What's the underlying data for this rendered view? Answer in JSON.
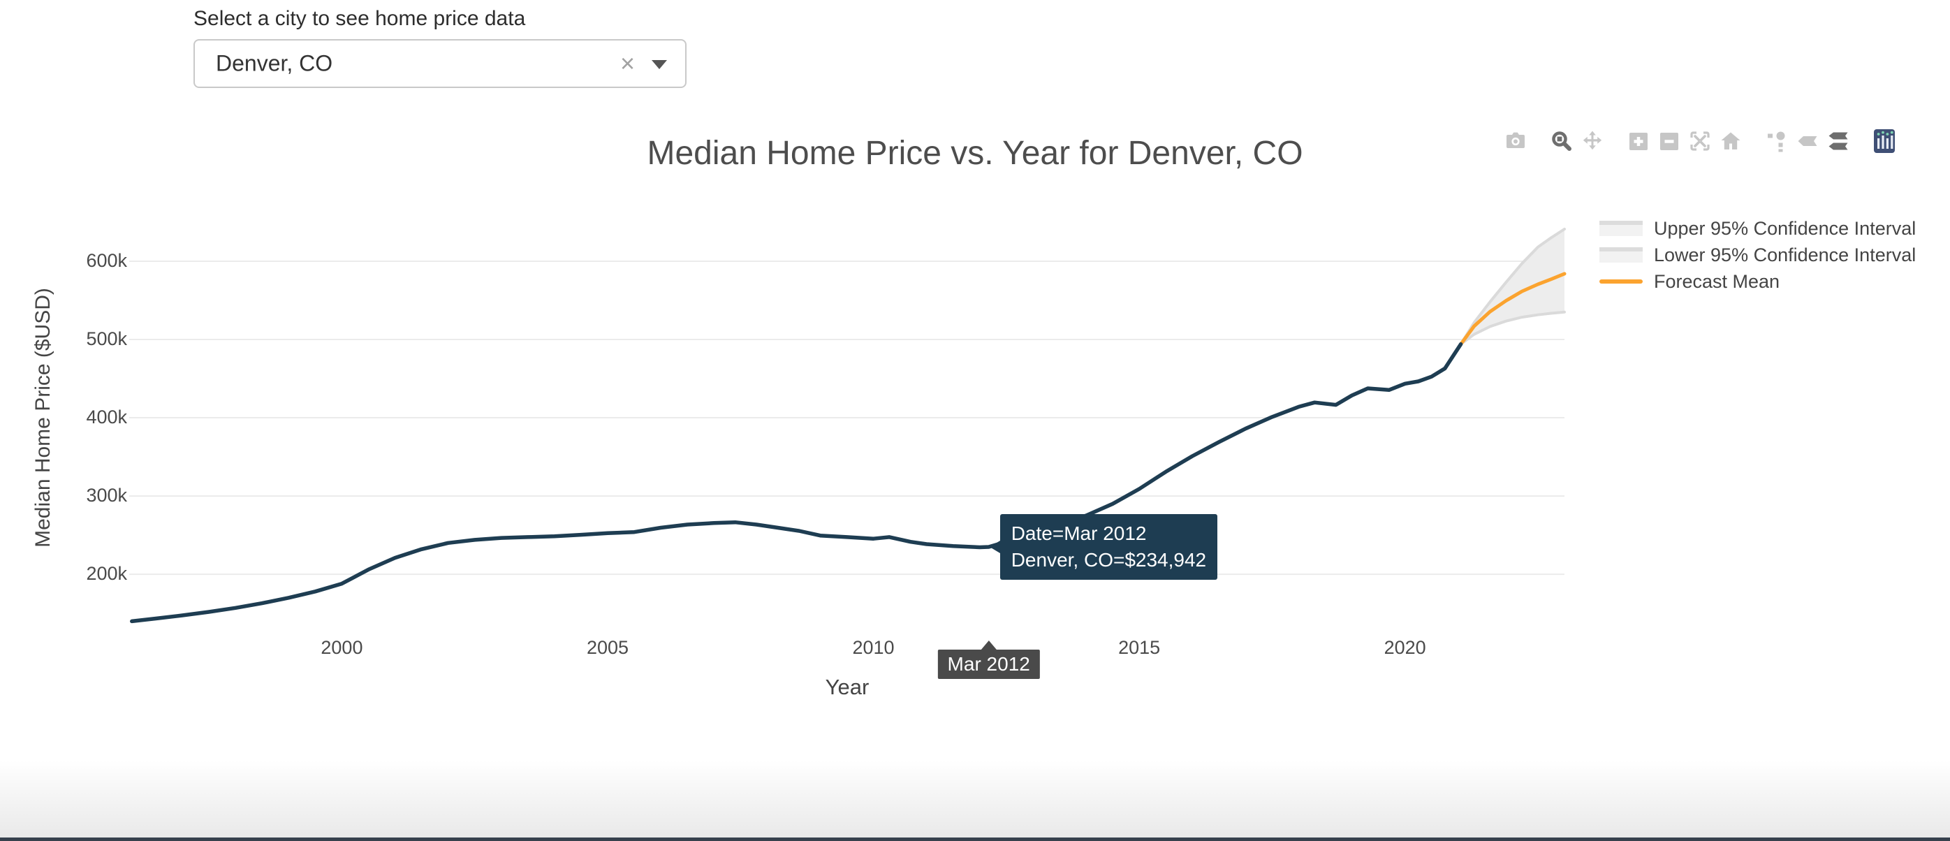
{
  "controls": {
    "label": "Select a city to see home price data",
    "value": "Denver, CO",
    "clear_icon": "×"
  },
  "modebar_groups": [
    [
      {
        "name": "camera",
        "active": false
      }
    ],
    [
      {
        "name": "zoom",
        "active": true
      },
      {
        "name": "pan",
        "active": false
      }
    ],
    [
      {
        "name": "zoom-in",
        "active": false
      },
      {
        "name": "zoom-out",
        "active": false
      },
      {
        "name": "autoscale",
        "active": false
      },
      {
        "name": "home",
        "active": false
      }
    ],
    [
      {
        "name": "spikelines",
        "active": false
      },
      {
        "name": "hover-closest",
        "active": false
      },
      {
        "name": "hover-compare",
        "active": true
      }
    ],
    [
      {
        "name": "plotly-logo",
        "active": false
      }
    ]
  ],
  "colors": {
    "historical": "#1e3d52",
    "forecast": "#fba32f",
    "ci_line": "#dadada",
    "ci_fill": "#ededed",
    "grid": "#ebebeb",
    "tooltip_bg": "#1e3d52",
    "spike_bg": "#4a4a4a",
    "logo_bg": "#3f4f75"
  },
  "chart_data": {
    "type": "line",
    "title": "Median Home Price vs. Year for Denver, CO",
    "xlabel": "Year",
    "ylabel": "Median Home Price ($USD)",
    "xlim": [
      1996.0,
      2023.0
    ],
    "ylim": [
      135000,
      666000
    ],
    "x_ticks": [
      2000,
      2005,
      2010,
      2015,
      2020
    ],
    "y_ticks": [
      {
        "value": 200000,
        "label": "200k"
      },
      {
        "value": 300000,
        "label": "300k"
      },
      {
        "value": 400000,
        "label": "400k"
      },
      {
        "value": 500000,
        "label": "500k"
      },
      {
        "value": 600000,
        "label": "600k"
      }
    ],
    "legend_position": "top-right-outside",
    "grid": true,
    "series": [
      {
        "name": "Denver, CO",
        "role": "historical",
        "show_in_legend": false,
        "points": [
          [
            1996.05,
            140000
          ],
          [
            1996.5,
            143500
          ],
          [
            1997,
            147500
          ],
          [
            1997.5,
            152000
          ],
          [
            1998,
            157000
          ],
          [
            1998.5,
            163000
          ],
          [
            1999,
            170000
          ],
          [
            1999.5,
            178000
          ],
          [
            2000,
            188000
          ],
          [
            2000.5,
            206000
          ],
          [
            2001,
            221000
          ],
          [
            2001.5,
            232000
          ],
          [
            2002,
            240000
          ],
          [
            2002.5,
            244000
          ],
          [
            2003,
            246500
          ],
          [
            2003.5,
            247500
          ],
          [
            2004,
            248500
          ],
          [
            2004.5,
            250500
          ],
          [
            2005,
            252500
          ],
          [
            2005.5,
            254000
          ],
          [
            2006,
            259500
          ],
          [
            2006.5,
            263500
          ],
          [
            2007,
            265500
          ],
          [
            2007.4,
            266500
          ],
          [
            2007.8,
            263500
          ],
          [
            2008.2,
            259500
          ],
          [
            2008.6,
            255500
          ],
          [
            2009,
            249500
          ],
          [
            2009.5,
            247500
          ],
          [
            2010,
            245500
          ],
          [
            2010.3,
            247500
          ],
          [
            2010.7,
            241500
          ],
          [
            2011,
            238500
          ],
          [
            2011.5,
            236000
          ],
          [
            2012,
            234500
          ],
          [
            2012.17,
            234942
          ],
          [
            2012.5,
            241500
          ],
          [
            2013,
            252500
          ],
          [
            2013.5,
            263000
          ],
          [
            2014,
            275000
          ],
          [
            2014.5,
            290000
          ],
          [
            2015,
            309000
          ],
          [
            2015.5,
            331000
          ],
          [
            2016,
            351000
          ],
          [
            2016.5,
            369000
          ],
          [
            2017,
            386000
          ],
          [
            2017.5,
            401000
          ],
          [
            2018,
            414000
          ],
          [
            2018.3,
            419500
          ],
          [
            2018.7,
            416500
          ],
          [
            2019,
            428500
          ],
          [
            2019.3,
            437500
          ],
          [
            2019.7,
            435500
          ],
          [
            2020,
            443500
          ],
          [
            2020.25,
            446500
          ],
          [
            2020.5,
            452500
          ],
          [
            2020.75,
            463000
          ],
          [
            2021.05,
            494000
          ]
        ]
      },
      {
        "name": "Upper 95% Confidence Interval",
        "role": "ci_upper",
        "show_in_legend": true,
        "points": [
          [
            2021.05,
            494000
          ],
          [
            2021.3,
            521500
          ],
          [
            2021.6,
            548000
          ],
          [
            2021.9,
            573000
          ],
          [
            2022.2,
            597000
          ],
          [
            2022.5,
            618000
          ],
          [
            2022.75,
            630000
          ],
          [
            2023,
            641000
          ]
        ]
      },
      {
        "name": "Lower 95% Confidence Interval",
        "role": "ci_lower",
        "show_in_legend": true,
        "points": [
          [
            2021.05,
            494000
          ],
          [
            2021.3,
            506500
          ],
          [
            2021.6,
            516500
          ],
          [
            2021.9,
            523500
          ],
          [
            2022.2,
            528500
          ],
          [
            2022.5,
            531500
          ],
          [
            2022.75,
            533500
          ],
          [
            2023,
            535000
          ]
        ]
      },
      {
        "name": "Forecast Mean",
        "role": "forecast_mean",
        "show_in_legend": true,
        "points": [
          [
            2021.05,
            494000
          ],
          [
            2021.3,
            517000
          ],
          [
            2021.6,
            535500
          ],
          [
            2021.9,
            549500
          ],
          [
            2022.2,
            561500
          ],
          [
            2022.5,
            570500
          ],
          [
            2022.75,
            577000
          ],
          [
            2023,
            584000
          ]
        ]
      }
    ],
    "legend": [
      {
        "label": "Upper 95% Confidence Interval",
        "swatch": "band"
      },
      {
        "label": "Lower 95% Confidence Interval",
        "swatch": "band"
      },
      {
        "label": "Forecast Mean",
        "swatch": "line"
      }
    ],
    "hover": {
      "x": 2012.17,
      "value": 234942,
      "line1": "Date=Mar 2012",
      "line2": "Denver, CO=$234,942",
      "axis_label": "Mar 2012"
    }
  }
}
